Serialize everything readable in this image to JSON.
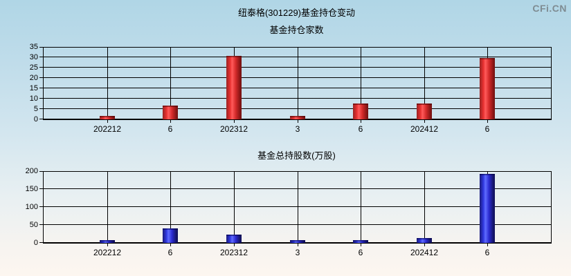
{
  "page": {
    "title": "纽泰格(301229)基金持仓变动",
    "logo": "CFi.CN"
  },
  "colors": {
    "bar_red": "#dd2222",
    "bar_blue": "#2b2bd0",
    "grid": "#000000",
    "logo_gray": "#7f8c92",
    "background_top": "#b0d6e6",
    "background_bottom": "#fdf6f0"
  },
  "chart_data": [
    {
      "type": "bar",
      "title": "基金持仓家数",
      "categories": [
        "202212",
        "6",
        "202312",
        "3",
        "6",
        "202412",
        "6"
      ],
      "values": [
        1,
        6,
        30,
        1,
        7,
        7,
        29
      ],
      "xlabel": "",
      "ylabel": "",
      "ylim": [
        0,
        35
      ],
      "ytick_step": 5,
      "bar_color": "red",
      "grid": true,
      "legend": null
    },
    {
      "type": "bar",
      "title": "基金总持股数(万股)",
      "categories": [
        "202212",
        "6",
        "202312",
        "3",
        "6",
        "202412",
        "6"
      ],
      "values": [
        1,
        37,
        20,
        1,
        1,
        9,
        188
      ],
      "xlabel": "",
      "ylabel": "",
      "ylim": [
        0,
        200
      ],
      "ytick_step": 50,
      "bar_color": "blue",
      "grid": true,
      "legend": null
    }
  ]
}
